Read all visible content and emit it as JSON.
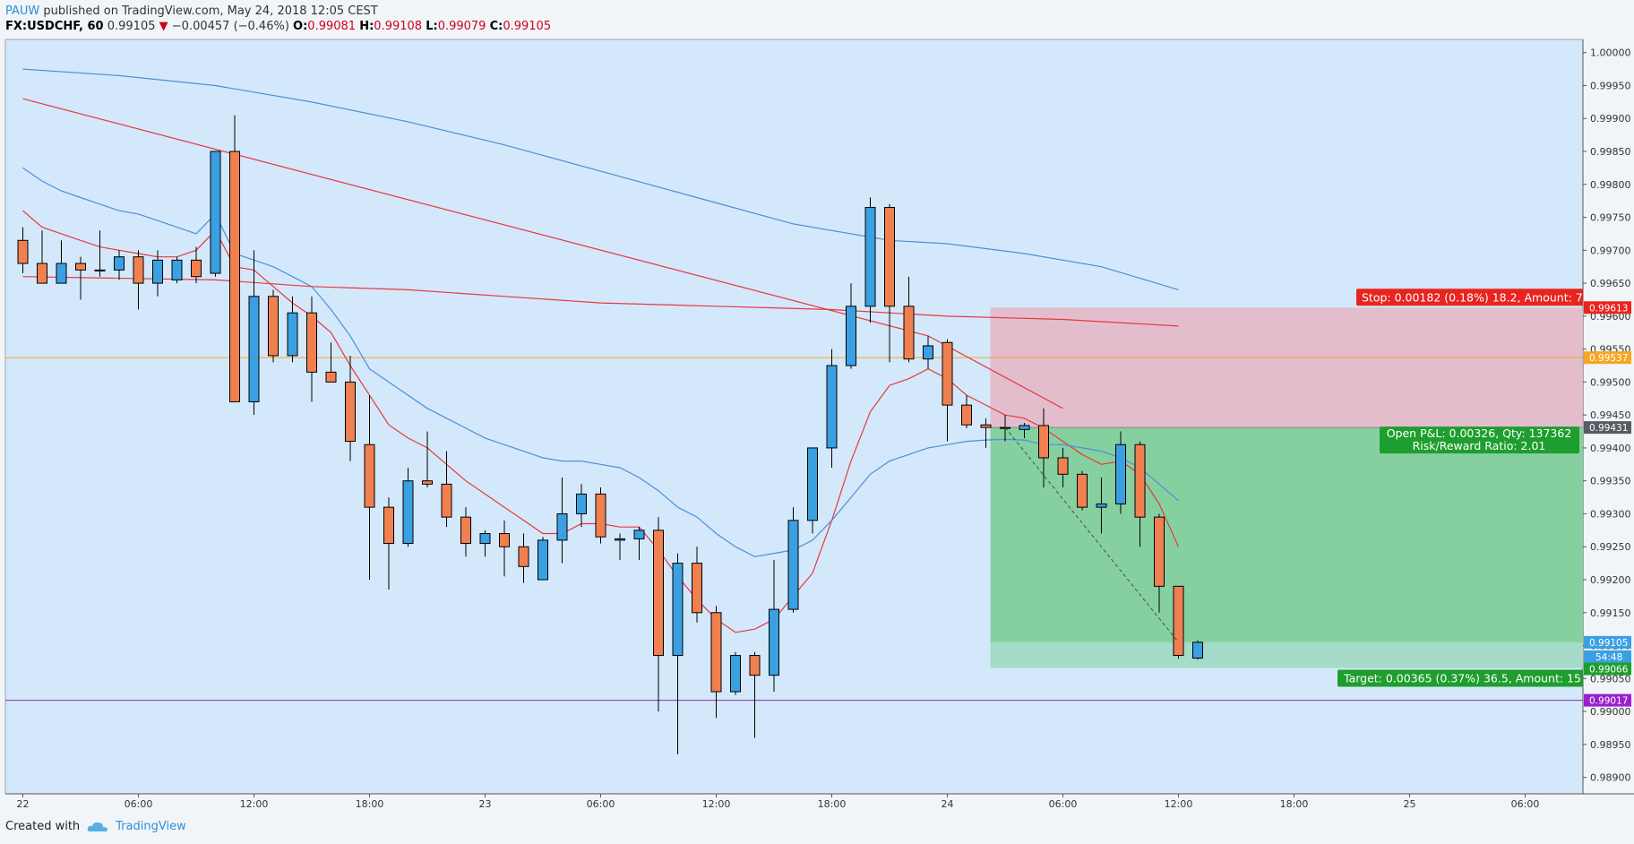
{
  "header": {
    "author": "PAUW",
    "published_text": "published on TradingView.com, May 24, 2018 12:05 CEST",
    "symbol": "FX:USDCHF, 60",
    "last": "0.99105",
    "change": "−0.00457 (−0.46%)",
    "o_label": "O:",
    "o": "0.99081",
    "h_label": "H:",
    "h": "0.99108",
    "l_label": "L:",
    "l": "0.99079",
    "c_label": "C:",
    "c": "0.99105"
  },
  "footer": {
    "created_with": "Created with",
    "brand": "TradingView"
  },
  "colors": {
    "plot_bg": "#d4e8fb",
    "bull": "#3aa0e2",
    "bear": "#f08050",
    "ma_red": "#e5393d",
    "ma_blue": "#4a90d6",
    "stop_zone": "#e6b8c8",
    "target_zone": "#86d0a0",
    "hline_orange": "#f5a623",
    "hline_purple": "#8b2fa0"
  },
  "chart_data": {
    "type": "candlestick",
    "ylim": [
      0.98875,
      1.0002
    ],
    "y_ticks": [
      "1.00000",
      "0.99950",
      "0.99900",
      "0.99850",
      "0.99800",
      "0.99750",
      "0.99700",
      "0.99650",
      "0.99600",
      "0.99550",
      "0.99500",
      "0.99450",
      "0.99400",
      "0.99350",
      "0.99300",
      "0.99250",
      "0.99200",
      "0.99150",
      "0.99100",
      "0.99050",
      "0.99000",
      "0.98950",
      "0.98900"
    ],
    "x_ticks": [
      "22",
      "06:00",
      "12:00",
      "18:00",
      "23",
      "06:00",
      "12:00",
      "18:00",
      "24",
      "06:00",
      "12:00",
      "18:00",
      "25",
      "06:00"
    ],
    "x_tick_index": [
      0,
      6,
      12,
      18,
      24,
      30,
      36,
      42,
      48,
      54,
      60,
      66,
      72,
      78
    ],
    "candles": [
      {
        "o": 0.99715,
        "h": 0.99735,
        "l": 0.99665,
        "c": 0.9968
      },
      {
        "o": 0.9968,
        "h": 0.9973,
        "l": 0.9965,
        "c": 0.9965
      },
      {
        "o": 0.9965,
        "h": 0.99715,
        "l": 0.9965,
        "c": 0.9968
      },
      {
        "o": 0.9968,
        "h": 0.9969,
        "l": 0.99625,
        "c": 0.9967
      },
      {
        "o": 0.9967,
        "h": 0.9973,
        "l": 0.9966,
        "c": 0.9967
      },
      {
        "o": 0.9967,
        "h": 0.997,
        "l": 0.99655,
        "c": 0.9969
      },
      {
        "o": 0.9969,
        "h": 0.997,
        "l": 0.9961,
        "c": 0.9965
      },
      {
        "o": 0.9965,
        "h": 0.997,
        "l": 0.9963,
        "c": 0.99685
      },
      {
        "o": 0.99655,
        "h": 0.9969,
        "l": 0.9965,
        "c": 0.99685
      },
      {
        "o": 0.99685,
        "h": 0.99705,
        "l": 0.9965,
        "c": 0.9966
      },
      {
        "o": 0.99665,
        "h": 0.9985,
        "l": 0.9966,
        "c": 0.9985
      },
      {
        "o": 0.9985,
        "h": 0.99905,
        "l": 0.9947,
        "c": 0.9947
      },
      {
        "o": 0.9947,
        "h": 0.997,
        "l": 0.9945,
        "c": 0.9963
      },
      {
        "o": 0.9963,
        "h": 0.9964,
        "l": 0.9953,
        "c": 0.9954
      },
      {
        "o": 0.9954,
        "h": 0.9963,
        "l": 0.9953,
        "c": 0.99605
      },
      {
        "o": 0.99605,
        "h": 0.9963,
        "l": 0.9947,
        "c": 0.99515
      },
      {
        "o": 0.99515,
        "h": 0.9956,
        "l": 0.995,
        "c": 0.995
      },
      {
        "o": 0.995,
        "h": 0.9954,
        "l": 0.9938,
        "c": 0.9941
      },
      {
        "o": 0.99405,
        "h": 0.9948,
        "l": 0.992,
        "c": 0.9931
      },
      {
        "o": 0.9931,
        "h": 0.99325,
        "l": 0.99185,
        "c": 0.99255
      },
      {
        "o": 0.99255,
        "h": 0.9937,
        "l": 0.9925,
        "c": 0.9935
      },
      {
        "o": 0.9935,
        "h": 0.99425,
        "l": 0.9934,
        "c": 0.99345
      },
      {
        "o": 0.99345,
        "h": 0.99395,
        "l": 0.9928,
        "c": 0.99295
      },
      {
        "o": 0.99295,
        "h": 0.9931,
        "l": 0.99235,
        "c": 0.99255
      },
      {
        "o": 0.99255,
        "h": 0.99275,
        "l": 0.99235,
        "c": 0.9927
      },
      {
        "o": 0.9927,
        "h": 0.9929,
        "l": 0.99205,
        "c": 0.9925
      },
      {
        "o": 0.9925,
        "h": 0.9927,
        "l": 0.99195,
        "c": 0.9922
      },
      {
        "o": 0.992,
        "h": 0.99265,
        "l": 0.992,
        "c": 0.9926
      },
      {
        "o": 0.9926,
        "h": 0.99355,
        "l": 0.99225,
        "c": 0.993
      },
      {
        "o": 0.993,
        "h": 0.99345,
        "l": 0.9928,
        "c": 0.9933
      },
      {
        "o": 0.9933,
        "h": 0.9934,
        "l": 0.99255,
        "c": 0.99265
      },
      {
        "o": 0.9926,
        "h": 0.9927,
        "l": 0.9923,
        "c": 0.99262
      },
      {
        "o": 0.99262,
        "h": 0.9928,
        "l": 0.9923,
        "c": 0.99275
      },
      {
        "o": 0.99275,
        "h": 0.99295,
        "l": 0.99,
        "c": 0.99085
      },
      {
        "o": 0.99085,
        "h": 0.9924,
        "l": 0.98935,
        "c": 0.99225
      },
      {
        "o": 0.99225,
        "h": 0.9925,
        "l": 0.99135,
        "c": 0.9915
      },
      {
        "o": 0.9915,
        "h": 0.9916,
        "l": 0.9899,
        "c": 0.9903
      },
      {
        "o": 0.9903,
        "h": 0.9909,
        "l": 0.99025,
        "c": 0.99085
      },
      {
        "o": 0.99085,
        "h": 0.9909,
        "l": 0.9896,
        "c": 0.99055
      },
      {
        "o": 0.99055,
        "h": 0.9923,
        "l": 0.9903,
        "c": 0.99155
      },
      {
        "o": 0.99155,
        "h": 0.9931,
        "l": 0.9915,
        "c": 0.9929
      },
      {
        "o": 0.9929,
        "h": 0.994,
        "l": 0.9927,
        "c": 0.994
      },
      {
        "o": 0.994,
        "h": 0.9955,
        "l": 0.9937,
        "c": 0.99525
      },
      {
        "o": 0.99525,
        "h": 0.9965,
        "l": 0.9952,
        "c": 0.99615
      },
      {
        "o": 0.99615,
        "h": 0.9978,
        "l": 0.9959,
        "c": 0.99765
      },
      {
        "o": 0.99765,
        "h": 0.9977,
        "l": 0.9953,
        "c": 0.99615
      },
      {
        "o": 0.99615,
        "h": 0.9966,
        "l": 0.9953,
        "c": 0.99535
      },
      {
        "o": 0.99535,
        "h": 0.9957,
        "l": 0.9952,
        "c": 0.99555
      },
      {
        "o": 0.9956,
        "h": 0.99565,
        "l": 0.9941,
        "c": 0.99465
      },
      {
        "o": 0.99465,
        "h": 0.9948,
        "l": 0.9943,
        "c": 0.99435
      },
      {
        "o": 0.99435,
        "h": 0.99445,
        "l": 0.994,
        "c": 0.99431
      },
      {
        "o": 0.99431,
        "h": 0.9945,
        "l": 0.9941,
        "c": 0.99431
      },
      {
        "o": 0.99428,
        "h": 0.99438,
        "l": 0.99415,
        "c": 0.99434
      },
      {
        "o": 0.99434,
        "h": 0.9946,
        "l": 0.9934,
        "c": 0.99385
      },
      {
        "o": 0.99385,
        "h": 0.994,
        "l": 0.9934,
        "c": 0.9936
      },
      {
        "o": 0.9936,
        "h": 0.99365,
        "l": 0.99305,
        "c": 0.9931
      },
      {
        "o": 0.9931,
        "h": 0.99355,
        "l": 0.9927,
        "c": 0.99315
      },
      {
        "o": 0.99315,
        "h": 0.99425,
        "l": 0.993,
        "c": 0.99405
      },
      {
        "o": 0.99405,
        "h": 0.9941,
        "l": 0.9925,
        "c": 0.99295
      },
      {
        "o": 0.99295,
        "h": 0.993,
        "l": 0.9915,
        "c": 0.9919
      },
      {
        "o": 0.9919,
        "h": 0.9919,
        "l": 0.9908,
        "c": 0.99085
      },
      {
        "o": 0.99081,
        "h": 0.99108,
        "l": 0.99079,
        "c": 0.99105
      }
    ],
    "overlays": [
      {
        "color": "ma_red",
        "points": [
          [
            0,
            0.9976
          ],
          [
            1,
            0.99735
          ],
          [
            2,
            0.99725
          ],
          [
            3,
            0.99715
          ],
          [
            4,
            0.99705
          ],
          [
            5,
            0.997
          ],
          [
            6,
            0.99695
          ],
          [
            7,
            0.9969
          ],
          [
            8,
            0.9969
          ],
          [
            9,
            0.997
          ],
          [
            10,
            0.9973
          ],
          [
            11,
            0.99675
          ],
          [
            12,
            0.9967
          ],
          [
            13,
            0.99645
          ],
          [
            14,
            0.9962
          ],
          [
            15,
            0.996
          ],
          [
            16,
            0.99575
          ],
          [
            17,
            0.99525
          ],
          [
            18,
            0.9948
          ],
          [
            19,
            0.99435
          ],
          [
            20,
            0.99415
          ],
          [
            21,
            0.994
          ],
          [
            22,
            0.99375
          ],
          [
            23,
            0.9935
          ],
          [
            24,
            0.9933
          ],
          [
            25,
            0.9931
          ],
          [
            26,
            0.9929
          ],
          [
            27,
            0.9927
          ],
          [
            28,
            0.9927
          ],
          [
            29,
            0.99285
          ],
          [
            30,
            0.99285
          ],
          [
            31,
            0.9928
          ],
          [
            32,
            0.9928
          ],
          [
            33,
            0.99245
          ],
          [
            34,
            0.99205
          ],
          [
            35,
            0.9917
          ],
          [
            36,
            0.9914
          ],
          [
            37,
            0.9912
          ],
          [
            38,
            0.99125
          ],
          [
            39,
            0.9914
          ],
          [
            40,
            0.99175
          ],
          [
            41,
            0.9921
          ],
          [
            42,
            0.9929
          ],
          [
            43,
            0.9938
          ],
          [
            44,
            0.99455
          ],
          [
            45,
            0.99495
          ],
          [
            46,
            0.99505
          ],
          [
            47,
            0.9952
          ],
          [
            48,
            0.99505
          ],
          [
            49,
            0.9948
          ],
          [
            50,
            0.99465
          ],
          [
            51,
            0.9945
          ],
          [
            52,
            0.99445
          ],
          [
            53,
            0.9943
          ],
          [
            54,
            0.9941
          ],
          [
            55,
            0.9939
          ],
          [
            56,
            0.99375
          ],
          [
            57,
            0.9938
          ],
          [
            58,
            0.9936
          ],
          [
            59,
            0.99315
          ],
          [
            60,
            0.9925
          ]
        ]
      },
      {
        "color": "ma_blue",
        "points": [
          [
            0,
            0.99825
          ],
          [
            1,
            0.99805
          ],
          [
            2,
            0.9979
          ],
          [
            3,
            0.9978
          ],
          [
            4,
            0.9977
          ],
          [
            5,
            0.9976
          ],
          [
            6,
            0.99755
          ],
          [
            7,
            0.99745
          ],
          [
            8,
            0.99735
          ],
          [
            9,
            0.99725
          ],
          [
            10,
            0.99755
          ],
          [
            11,
            0.99695
          ],
          [
            12,
            0.99685
          ],
          [
            13,
            0.99675
          ],
          [
            14,
            0.9966
          ],
          [
            15,
            0.99645
          ],
          [
            16,
            0.9961
          ],
          [
            17,
            0.9957
          ],
          [
            18,
            0.9952
          ],
          [
            19,
            0.995
          ],
          [
            20,
            0.9948
          ],
          [
            21,
            0.9946
          ],
          [
            22,
            0.99445
          ],
          [
            23,
            0.9943
          ],
          [
            24,
            0.99415
          ],
          [
            25,
            0.99405
          ],
          [
            26,
            0.99395
          ],
          [
            27,
            0.99385
          ],
          [
            28,
            0.9938
          ],
          [
            29,
            0.9938
          ],
          [
            30,
            0.99375
          ],
          [
            31,
            0.9937
          ],
          [
            32,
            0.99355
          ],
          [
            33,
            0.99335
          ],
          [
            34,
            0.9931
          ],
          [
            35,
            0.99295
          ],
          [
            36,
            0.9927
          ],
          [
            37,
            0.9925
          ],
          [
            38,
            0.99235
          ],
          [
            39,
            0.9924
          ],
          [
            40,
            0.99245
          ],
          [
            41,
            0.9926
          ],
          [
            42,
            0.9929
          ],
          [
            43,
            0.99325
          ],
          [
            44,
            0.9936
          ],
          [
            45,
            0.9938
          ],
          [
            46,
            0.9939
          ],
          [
            47,
            0.994
          ],
          [
            48,
            0.99405
          ],
          [
            49,
            0.9941
          ],
          [
            50,
            0.99412
          ],
          [
            51,
            0.99413
          ],
          [
            52,
            0.99412
          ],
          [
            53,
            0.99405
          ],
          [
            54,
            0.99405
          ],
          [
            55,
            0.994
          ],
          [
            56,
            0.99395
          ],
          [
            57,
            0.99385
          ],
          [
            58,
            0.9937
          ],
          [
            59,
            0.99345
          ],
          [
            60,
            0.9932
          ]
        ]
      },
      {
        "color": "ma_red",
        "points": [
          [
            0,
            0.9993
          ],
          [
            47,
            0.9957
          ],
          [
            54,
            0.9946
          ]
        ]
      },
      {
        "color": "ma_red",
        "points": [
          [
            0,
            0.9966
          ],
          [
            10,
            0.99655
          ],
          [
            15,
            0.99645
          ],
          [
            20,
            0.9964
          ],
          [
            25,
            0.9963
          ],
          [
            30,
            0.9962
          ],
          [
            36,
            0.99615
          ],
          [
            42,
            0.9961
          ],
          [
            48,
            0.996
          ],
          [
            54,
            0.99595
          ],
          [
            60,
            0.99585
          ]
        ]
      },
      {
        "color": "ma_blue",
        "points": [
          [
            0,
            0.99975
          ],
          [
            5,
            0.99965
          ],
          [
            10,
            0.9995
          ],
          [
            15,
            0.99925
          ],
          [
            20,
            0.99895
          ],
          [
            25,
            0.9986
          ],
          [
            30,
            0.9982
          ],
          [
            35,
            0.9978
          ],
          [
            40,
            0.9974
          ],
          [
            45,
            0.99715
          ],
          [
            48,
            0.9971
          ],
          [
            52,
            0.99695
          ],
          [
            56,
            0.99675
          ],
          [
            60,
            0.9964
          ]
        ]
      }
    ],
    "trend_line": [
      [
        51,
        0.99431
      ],
      [
        60,
        0.99105
      ]
    ],
    "horizontal_lines": [
      {
        "price": 0.99537,
        "label": "0.99537",
        "color": "hline_orange"
      },
      {
        "price": 0.99017,
        "label": "0.99017",
        "color": "hline_purple"
      }
    ],
    "position": {
      "entry_index": 50,
      "end_index": 79,
      "entry": 0.99431,
      "stop": 0.99613,
      "target": 0.99066,
      "current": 0.99105,
      "stop_label": "Stop: 0.00182 (0.18%) 18.2, Amount: 7",
      "pnl_label": "Open P&L: 0.00326, Qty: 137362",
      "rr_label": "Risk/Reward Ratio: 2.01",
      "target_label": "Target: 0.00365 (0.37%) 36.5, Amount: 15",
      "stop_price_label": "0.99613",
      "entry_price_label": "0.99431",
      "target_price_label": "0.99066",
      "last_price_label": "0.99105",
      "countdown": "54:48"
    }
  }
}
